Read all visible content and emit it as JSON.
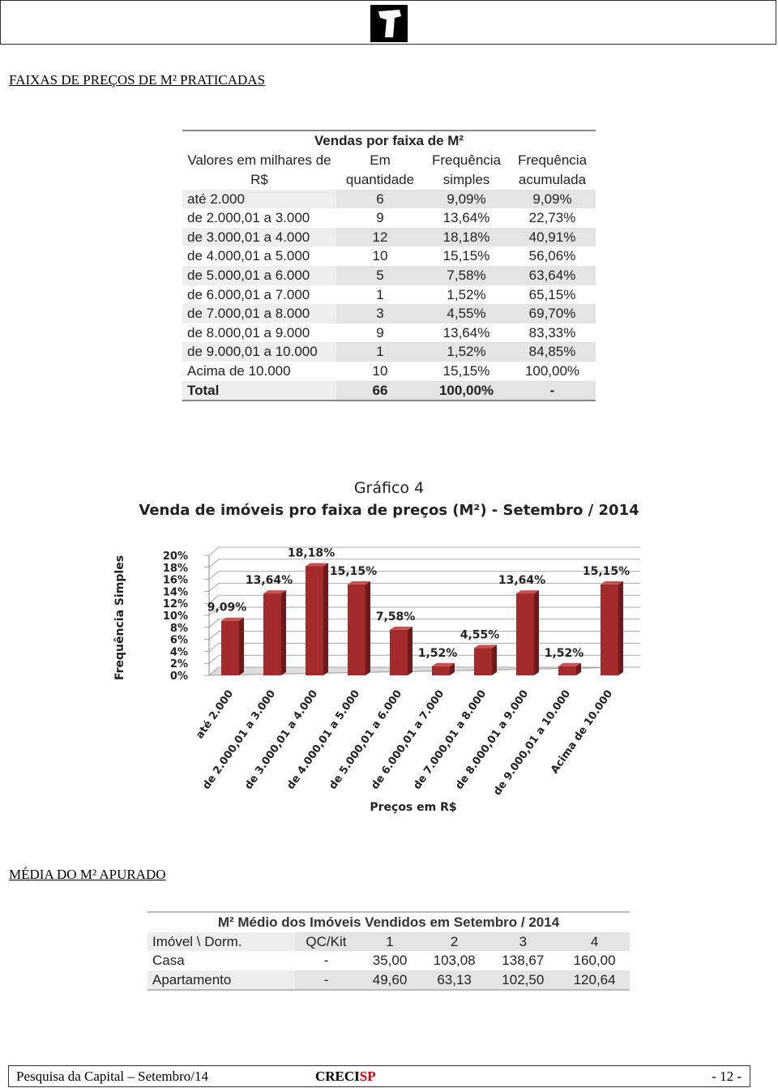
{
  "section1_title": "FAIXAS DE PREÇOS DE M² PRATICADAS",
  "table1": {
    "title": "Vendas por faixa de M²",
    "headers": [
      "Valores em milhares de R$",
      "Em quantidade",
      "Frequência simples",
      "Frequência acumulada"
    ],
    "rows": [
      [
        "até 2.000",
        "6",
        "9,09%",
        "9,09%"
      ],
      [
        "de 2.000,01 a 3.000",
        "9",
        "13,64%",
        "22,73%"
      ],
      [
        "de 3.000,01 a 4.000",
        "12",
        "18,18%",
        "40,91%"
      ],
      [
        "de 4.000,01 a 5.000",
        "10",
        "15,15%",
        "56,06%"
      ],
      [
        "de 5.000,01 a 6.000",
        "5",
        "7,58%",
        "63,64%"
      ],
      [
        "de 6.000,01 a 7.000",
        "1",
        "1,52%",
        "65,15%"
      ],
      [
        "de 7.000,01 a 8.000",
        "3",
        "4,55%",
        "69,70%"
      ],
      [
        "de 8.000,01 a 9.000",
        "9",
        "13,64%",
        "83,33%"
      ],
      [
        "de 9.000,01 a 10.000",
        "1",
        "1,52%",
        "84,85%"
      ],
      [
        "Acima de 10.000",
        "10",
        "15,15%",
        "100,00%"
      ]
    ],
    "total": [
      "Total",
      "66",
      "100,00%",
      "-"
    ]
  },
  "chart_data": {
    "type": "bar",
    "title": "Gráfico 4",
    "subtitle": "Venda de imóveis pro faixa de preços (M²) - Setembro / 2014",
    "y_label": "Frequência Simples",
    "x_label": "Preços em R$",
    "categories": [
      "até 2.000",
      "de 2.000,01 a 3.000",
      "de 3.000,01 a 4.000",
      "de 4.000,01 a 5.000",
      "de 5.000,01 a 6.000",
      "de 6.000,01 a 7.000",
      "de 7.000,01 a 8.000",
      "de 8.000,01 a 9.000",
      "de 9.000,01 a 10.000",
      "Acima de 10.000"
    ],
    "values": [
      9.09,
      13.64,
      18.18,
      15.15,
      7.58,
      1.52,
      4.55,
      13.64,
      1.52,
      15.15
    ],
    "value_labels": [
      "9,09%",
      "13,64%",
      "18,18%",
      "15,15%",
      "7,58%",
      "1,52%",
      "4,55%",
      "13,64%",
      "1,52%",
      "15,15%"
    ],
    "color": "#a32b2b",
    "ylim": [
      0,
      20
    ],
    "yticks": [
      {
        "value": 0,
        "label": "0%"
      },
      {
        "value": 2,
        "label": "2%"
      },
      {
        "value": 4,
        "label": "4%"
      },
      {
        "value": 6,
        "label": "6%"
      },
      {
        "value": 8,
        "label": "8%"
      },
      {
        "value": 10,
        "label": "10%"
      },
      {
        "value": 12,
        "label": "12%"
      },
      {
        "value": 14,
        "label": "14%"
      },
      {
        "value": 16,
        "label": "16%"
      },
      {
        "value": 18,
        "label": "18%"
      },
      {
        "value": 20,
        "label": "20%"
      }
    ],
    "grid": true
  },
  "section2_title": "MÉDIA DO M² APURADO",
  "table2": {
    "title": "M² Médio dos Imóveis Vendidos em Setembro / 2014",
    "headers": [
      "Imóvel \\ Dorm.",
      "QC/Kit",
      "1",
      "2",
      "3",
      "4"
    ],
    "rows": [
      [
        "Casa",
        "-",
        "35,00",
        "103,08",
        "138,67",
        "160,00"
      ],
      [
        "Apartamento",
        "-",
        "49,60",
        "63,13",
        "102,50",
        "120,64"
      ]
    ]
  },
  "footer": {
    "left": "Pesquisa da Capital – Setembro/14",
    "brand_black": "CRECI",
    "brand_red": "SP",
    "page": "- 12 -"
  }
}
